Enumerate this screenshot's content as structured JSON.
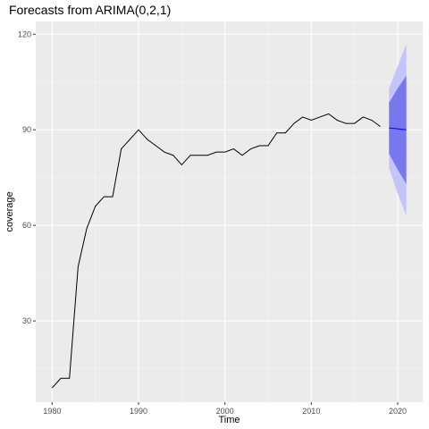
{
  "chart_data": {
    "type": "line",
    "title": "Forecasts from ARIMA(0,2,1)",
    "xlabel": "Time",
    "ylabel": "coverage",
    "xlim": [
      1978.1,
      2022.9
    ],
    "ylim": [
      4.5,
      124
    ],
    "xticks": [
      1980,
      1990,
      2000,
      2010,
      2020
    ],
    "yticks": [
      30,
      60,
      90,
      120
    ],
    "grid": true,
    "colors": {
      "panel_bg": "#ebebeb",
      "grid_major": "#ffffff",
      "grid_minor": "#f5f5f5",
      "line": "#000000",
      "forecast_line": "#0000ff",
      "band_80": "#7777ee",
      "band_95": "#c4c4f9"
    },
    "series": [
      {
        "x": [
          1980,
          1981,
          1982,
          1983,
          1984,
          1985,
          1986,
          1987,
          1988,
          1989,
          1990,
          1991,
          1992,
          1993,
          1994,
          1995,
          1996,
          1997,
          1998,
          1999,
          2000,
          2001,
          2002,
          2003,
          2004,
          2005,
          2006,
          2007,
          2008,
          2009,
          2010,
          2011,
          2012,
          2013,
          2014,
          2015,
          2016,
          2017,
          2018
        ],
        "values": [
          9,
          12,
          12,
          47,
          59,
          66,
          69,
          69,
          84,
          87,
          90,
          87,
          85,
          83,
          82,
          79,
          82,
          82,
          82,
          83,
          83,
          84,
          82,
          84,
          85,
          85,
          89,
          89,
          92,
          94,
          93,
          94,
          95,
          93,
          92,
          92,
          94,
          93,
          91
        ]
      }
    ],
    "forecast": {
      "x": [
        2019,
        2020,
        2021
      ],
      "mean": [
        90.6,
        90.3,
        90.0
      ],
      "lo80": [
        82.5,
        77.5,
        73.0
      ],
      "hi80": [
        98.5,
        103.0,
        107.0
      ],
      "lo95": [
        78.0,
        70.0,
        63.0
      ],
      "hi95": [
        103.0,
        110.0,
        117.0
      ]
    }
  }
}
